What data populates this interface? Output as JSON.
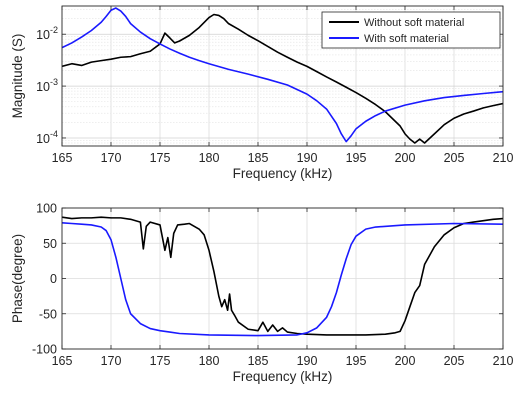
{
  "chart_data": [
    {
      "type": "line",
      "xlabel": "Frequency (kHz)",
      "ylabel": "Magnitude (S)",
      "xlim": [
        165,
        210
      ],
      "ylim": [
        7e-05,
        0.035
      ],
      "yscale": "log",
      "grid": true,
      "legend": "top-right",
      "x_ticks": [
        165,
        170,
        175,
        180,
        185,
        190,
        195,
        200,
        205,
        210
      ],
      "x_tick_labels": [
        "165",
        "170",
        "175",
        "180",
        "185",
        "190",
        "195",
        "200",
        "205",
        "210"
      ],
      "y_ticks": [
        0.0001,
        0.001,
        0.01
      ],
      "y_tick_labels": [
        "10",
        "10",
        "10"
      ],
      "y_tick_exponents": [
        "-4",
        "-3",
        "-2"
      ],
      "series": [
        {
          "name": "Without soft material",
          "color": "#000000",
          "x": [
            165,
            166,
            167,
            168,
            169,
            170,
            171,
            172,
            173,
            174,
            175,
            175.5,
            176,
            176.5,
            177,
            178,
            179,
            180,
            180.5,
            181,
            181.5,
            182,
            183,
            184,
            185,
            186,
            187,
            188,
            189,
            190,
            191,
            192,
            193,
            194,
            195,
            196,
            197,
            198,
            199,
            199.5,
            200,
            200.5,
            201,
            201.5,
            202,
            203,
            204,
            205,
            206,
            207,
            208,
            209,
            210
          ],
          "y": [
            0.0024,
            0.0027,
            0.0025,
            0.0029,
            0.0031,
            0.0033,
            0.0036,
            0.0037,
            0.0042,
            0.0047,
            0.0065,
            0.0105,
            0.0085,
            0.0068,
            0.0074,
            0.0095,
            0.0135,
            0.021,
            0.024,
            0.023,
            0.02,
            0.016,
            0.0125,
            0.0095,
            0.0075,
            0.0058,
            0.0045,
            0.0036,
            0.0029,
            0.0024,
            0.0019,
            0.0015,
            0.0012,
            0.00095,
            0.00075,
            0.00058,
            0.00044,
            0.00032,
            0.00021,
            0.00017,
            0.00012,
            9.5e-05,
            8e-05,
            9.5e-05,
            8e-05,
            0.00012,
            0.00018,
            0.00024,
            0.00029,
            0.00033,
            0.00038,
            0.00042,
            0.00046
          ]
        },
        {
          "name": "With soft material",
          "color": "#1a1aff",
          "x": [
            165,
            166,
            167,
            168,
            169,
            169.5,
            170,
            170.5,
            171,
            171.5,
            172,
            173,
            174,
            175,
            176,
            177,
            178,
            179,
            180,
            182,
            184,
            186,
            188,
            190,
            191,
            192,
            193,
            193.5,
            194,
            194.5,
            195,
            196,
            197,
            198,
            200,
            202,
            204,
            206,
            208,
            210
          ],
          "y": [
            0.0055,
            0.0068,
            0.0088,
            0.0118,
            0.017,
            0.022,
            0.029,
            0.032,
            0.028,
            0.022,
            0.016,
            0.011,
            0.0082,
            0.0065,
            0.0052,
            0.0043,
            0.0036,
            0.0031,
            0.0027,
            0.0021,
            0.0017,
            0.00135,
            0.00105,
            0.0007,
            0.00052,
            0.00036,
            0.00019,
            0.00012,
            8.5e-05,
            0.00011,
            0.00015,
            0.00021,
            0.00027,
            0.00033,
            0.00043,
            0.00052,
            0.0006,
            0.00066,
            0.00072,
            0.00078
          ]
        }
      ]
    },
    {
      "type": "line",
      "xlabel": "Frequency (kHz)",
      "ylabel": "Phase(degree)",
      "xlim": [
        165,
        210
      ],
      "ylim": [
        -100,
        100
      ],
      "grid": true,
      "x_ticks": [
        165,
        170,
        175,
        180,
        185,
        190,
        195,
        200,
        205,
        210
      ],
      "x_tick_labels": [
        "165",
        "170",
        "175",
        "180",
        "185",
        "190",
        "195",
        "200",
        "205",
        "210"
      ],
      "y_ticks": [
        -100,
        -50,
        0,
        50,
        100
      ],
      "y_tick_labels": [
        "-100",
        "-50",
        "0",
        "50",
        "100"
      ],
      "series": [
        {
          "name": "Without soft material",
          "color": "#000000",
          "x": [
            165,
            166,
            167,
            168,
            169,
            170,
            171,
            172,
            173,
            173.3,
            173.6,
            174,
            175,
            175.5,
            175.8,
            176.1,
            176.4,
            176.8,
            177.5,
            178,
            179,
            179.5,
            180,
            180.5,
            181,
            181.3,
            181.6,
            181.9,
            182.1,
            182.3,
            182.6,
            183,
            184,
            185,
            185.5,
            186,
            186.5,
            187,
            187.5,
            188,
            189,
            190,
            192,
            194,
            196,
            198,
            199,
            199.5,
            200,
            200.5,
            201,
            201.5,
            202,
            203,
            204,
            205,
            206,
            207,
            208,
            209,
            210
          ],
          "y": [
            87,
            85,
            86,
            86,
            87,
            86,
            86,
            84,
            80,
            42,
            74,
            80,
            76,
            40,
            58,
            30,
            64,
            76,
            77,
            78,
            70,
            62,
            40,
            10,
            -25,
            -40,
            -30,
            -45,
            -22,
            -45,
            -52,
            -62,
            -72,
            -74,
            -62,
            -75,
            -66,
            -75,
            -70,
            -76,
            -78,
            -79,
            -80,
            -80,
            -80,
            -79,
            -77,
            -75,
            -60,
            -40,
            -20,
            -10,
            20,
            45,
            62,
            72,
            78,
            80,
            82,
            84,
            85
          ]
        },
        {
          "name": "With soft material",
          "color": "#1a1aff",
          "x": [
            165,
            166,
            167,
            168,
            169,
            169.5,
            170,
            170.5,
            171,
            171.5,
            172,
            173,
            174,
            175,
            176,
            177,
            180,
            185,
            189,
            190,
            191,
            192,
            192.5,
            193,
            193.5,
            194,
            194.5,
            195,
            196,
            197,
            200,
            205,
            210
          ],
          "y": [
            79,
            78,
            77,
            76,
            73,
            68,
            55,
            30,
            0,
            -30,
            -50,
            -64,
            -71,
            -74,
            -76,
            -78,
            -80,
            -81,
            -80,
            -77,
            -70,
            -55,
            -40,
            -20,
            5,
            28,
            48,
            60,
            70,
            73,
            76,
            78,
            77
          ]
        }
      ]
    }
  ]
}
